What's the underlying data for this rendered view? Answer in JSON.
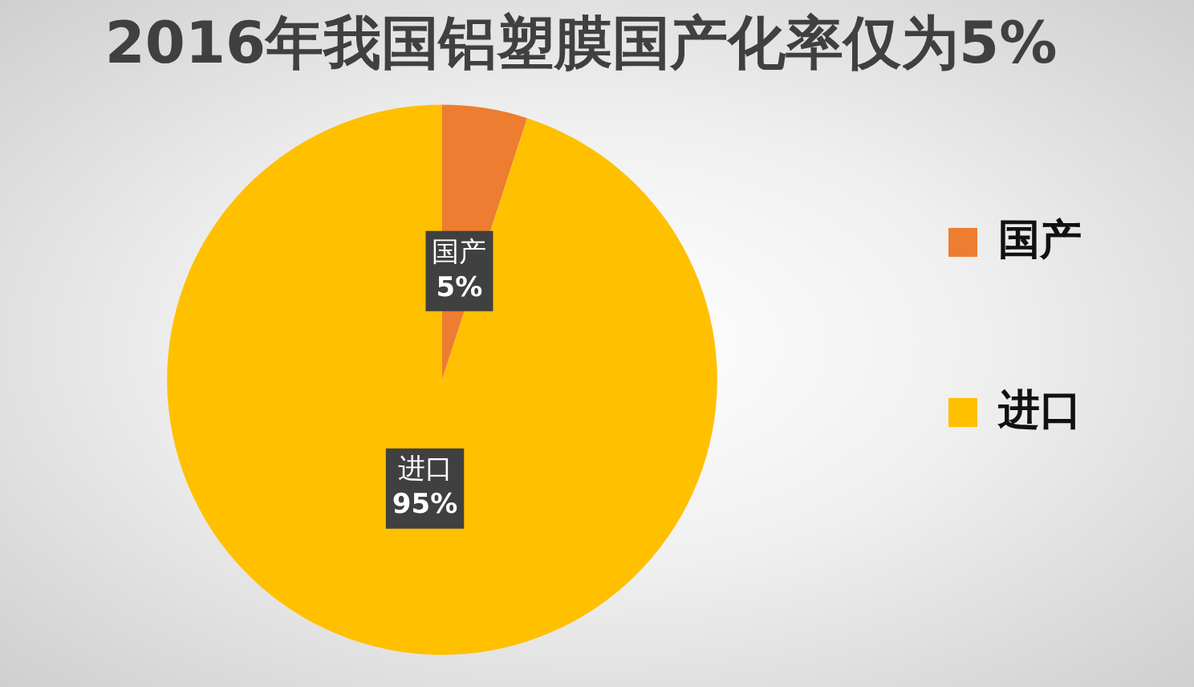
{
  "chart_data": {
    "type": "pie",
    "title": "2016年我国铝塑膜国产化率仅为5%",
    "categories": [
      "国产",
      "进口"
    ],
    "values": [
      5,
      95
    ],
    "colors": [
      "#ed7d31",
      "#ffc000"
    ],
    "value_labels": [
      "5%",
      "95%"
    ],
    "legend": "right"
  }
}
